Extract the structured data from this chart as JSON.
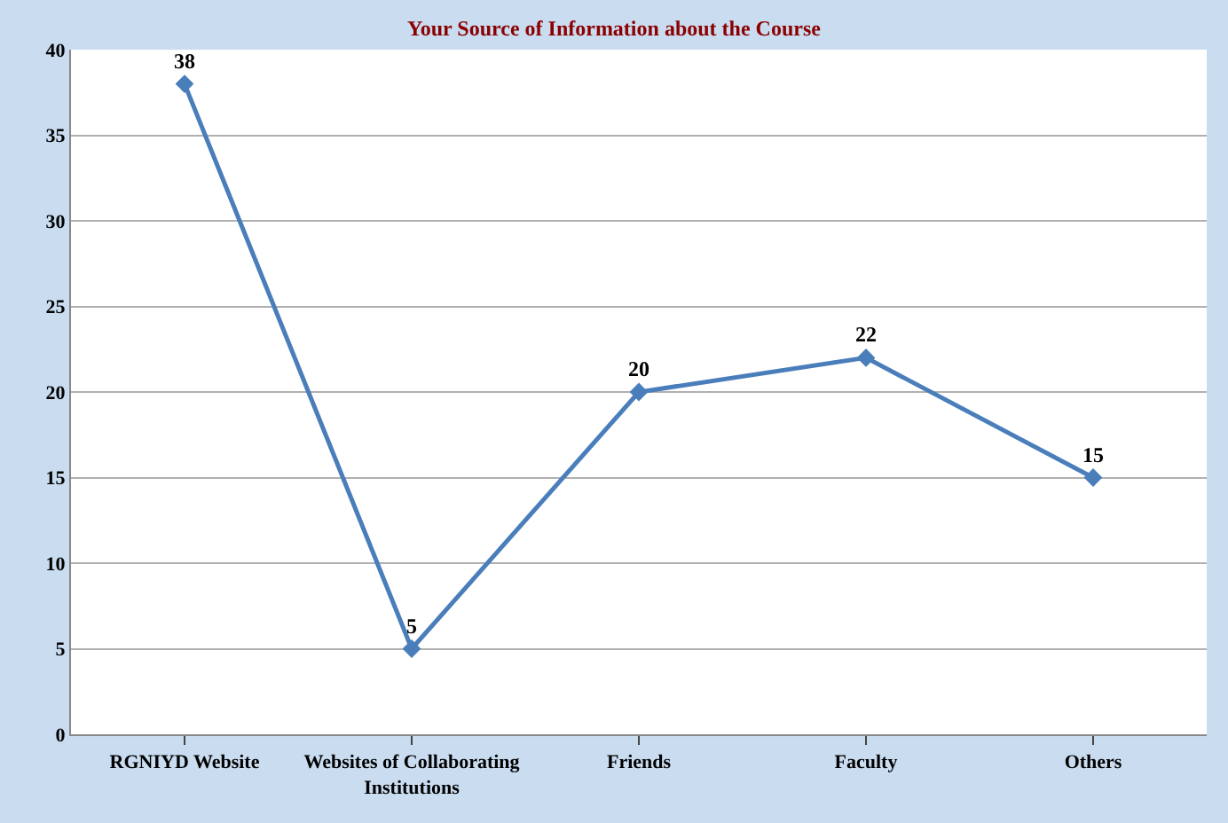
{
  "chart_data": {
    "type": "line",
    "title": "Your Source of Information about the Course",
    "categories": [
      "RGNIYD Website",
      "Websites of Collaborating Institutions",
      "Friends",
      "Faculty",
      "Others"
    ],
    "values": [
      38,
      5,
      20,
      22,
      15
    ],
    "color": "#4a7ebb",
    "marker": "diamond",
    "data_labels": true,
    "ylim": [
      0,
      40
    ],
    "yticks": [
      0,
      5,
      10,
      15,
      20,
      25,
      30,
      35,
      40
    ],
    "grid": "y"
  }
}
